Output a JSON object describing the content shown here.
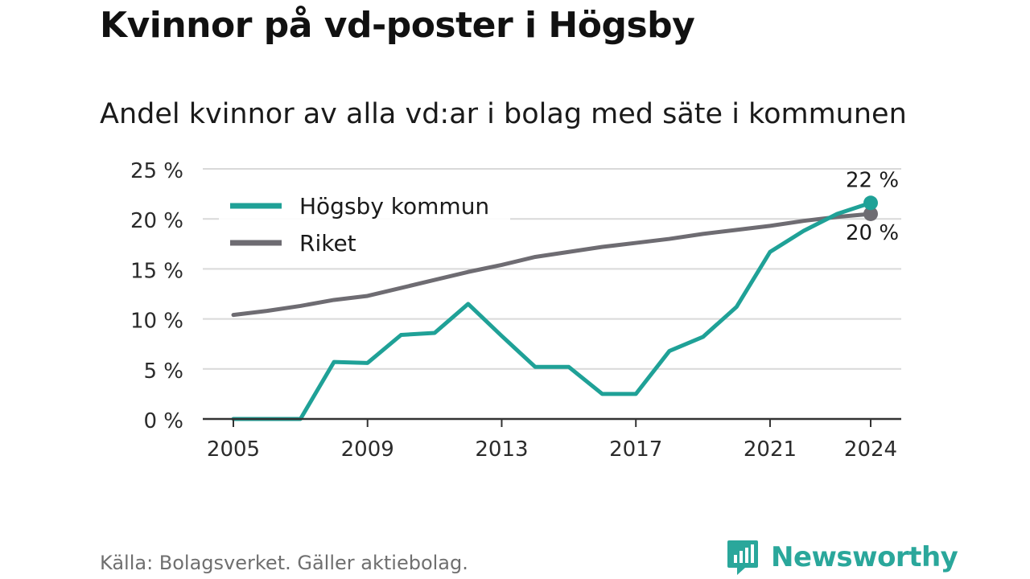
{
  "title": "Kvinnor på vd-poster i Högsby",
  "subtitle": "Andel kvinnor av alla vd:ar i bolag med säte i kommunen",
  "source": "Källa: Bolagsverket. Gäller aktiebolag.",
  "brand": "Newsworthy",
  "colors": {
    "hogsby": "#1fa197",
    "riket": "#6e6c72",
    "grid": "#d9d9d9",
    "axis": "#333333",
    "brand": "#2aa79b"
  },
  "chart_data": {
    "type": "line",
    "x": [
      2005,
      2006,
      2007,
      2008,
      2009,
      2010,
      2011,
      2012,
      2013,
      2014,
      2015,
      2016,
      2017,
      2018,
      2019,
      2020,
      2021,
      2022,
      2023,
      2024
    ],
    "series": [
      {
        "name": "Högsby kommun",
        "color_key": "hogsby",
        "values": [
          0,
          0,
          0,
          5.7,
          5.6,
          8.4,
          8.6,
          11.5,
          8.3,
          5.2,
          5.2,
          2.5,
          2.5,
          6.8,
          8.2,
          11.2,
          16.7,
          18.8,
          20.5,
          21.6
        ],
        "end_label": "22 %"
      },
      {
        "name": "Riket",
        "color_key": "riket",
        "values": [
          10.4,
          10.8,
          11.3,
          11.9,
          12.3,
          13.1,
          13.9,
          14.7,
          15.4,
          16.2,
          16.7,
          17.2,
          17.6,
          18.0,
          18.5,
          18.9,
          19.3,
          19.8,
          20.2,
          20.5
        ],
        "end_label": "20 %"
      }
    ],
    "xticks": [
      2005,
      2009,
      2013,
      2017,
      2021,
      2024
    ],
    "yticks": [
      0,
      5,
      10,
      15,
      20,
      25
    ],
    "ytick_labels": [
      "0 %",
      "5 %",
      "10 %",
      "15 %",
      "20 %",
      "25 %"
    ],
    "ylim": [
      0,
      25
    ],
    "xlim": [
      2005,
      2024
    ],
    "grid": true,
    "legend_position": "top-left"
  }
}
